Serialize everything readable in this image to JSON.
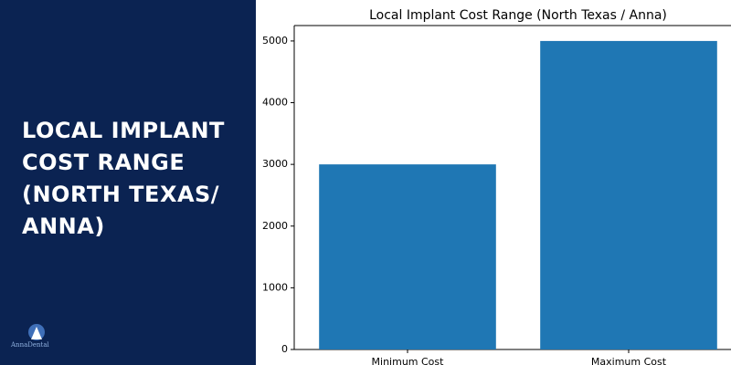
{
  "heading": "LOCAL IMPLANT COST RANGE (NORTH TEXAS/ ANNA)",
  "logo": "AnnaDental",
  "chart_data": {
    "type": "bar",
    "title": "Local Implant Cost Range (North Texas / Anna)",
    "categories": [
      "Minimum Cost",
      "Maximum Cost"
    ],
    "values": [
      3000,
      5000
    ],
    "color": "#1f77b4",
    "ylim": [
      0,
      5250
    ],
    "yticks": [
      0,
      1000,
      2000,
      3000,
      4000,
      5000
    ],
    "grid": false
  }
}
